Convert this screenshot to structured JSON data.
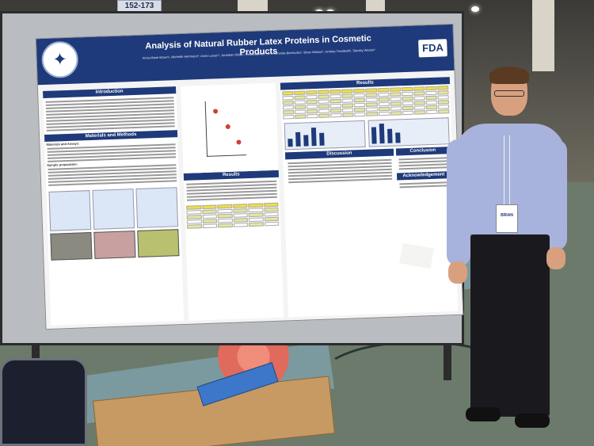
{
  "scene": {
    "sign_text": "152-173"
  },
  "poster": {
    "title": "Analysis of Natural Rubber Latex Proteins in Cosmetic Products",
    "authors": "Anna-Marie Brown¹, Michelle Herrmann², Anne Lucas¹², Jonathan Hicks¹, Rebecca Aziz², Erin Miranda-Bermudez¹, Brian Watson¹, Andrea Treadwell¹, Stanley Weiner²",
    "logo_right": "FDA",
    "sections": {
      "intro": "Introduction",
      "methods": "Materials and Methods",
      "results": "Results",
      "results_mid": "Results",
      "discussion": "Discussion",
      "conclusion": "Conclusion",
      "acknowledgment": "Acknowledgement"
    },
    "methods_sub": "Materials and Assays:",
    "sample_prep": "Sample preparation:"
  },
  "badge": {
    "text": "BRIAN"
  },
  "colors": {
    "poster_header": "#1f3a7a",
    "shirt": "#a7b3dc",
    "carpet": "#6b7a6a"
  }
}
